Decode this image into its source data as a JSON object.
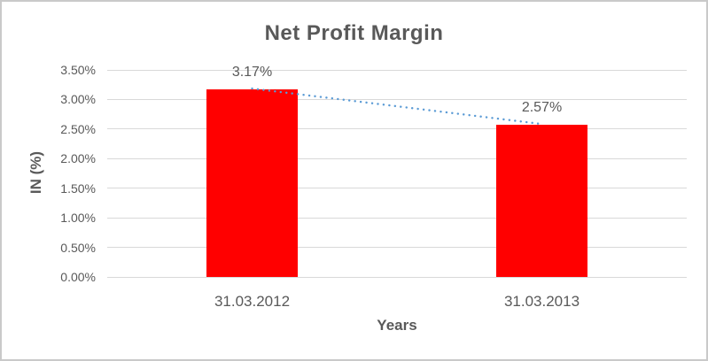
{
  "chart_data": {
    "type": "bar",
    "title": "Net Profit Margin",
    "xlabel": "Years",
    "ylabel": "IN (%)",
    "categories": [
      "31.03.2012",
      "31.03.2013"
    ],
    "values": [
      3.17,
      2.57
    ],
    "data_labels": [
      "3.17%",
      "2.57%"
    ],
    "ylim": [
      0,
      3.5
    ],
    "ytick_step": 0.5,
    "ytick_labels": [
      "0.00%",
      "0.50%",
      "1.00%",
      "1.50%",
      "2.00%",
      "2.50%",
      "3.00%",
      "3.50%"
    ],
    "grid": true,
    "legend": "none",
    "bar_color": "#ff0000",
    "text_color": "#595959",
    "gridline_color": "#d9d9d9",
    "trendline": {
      "type": "linear",
      "style": "dotted",
      "color": "#5b9bd5",
      "from_value": 3.17,
      "to_value": 2.57
    }
  }
}
